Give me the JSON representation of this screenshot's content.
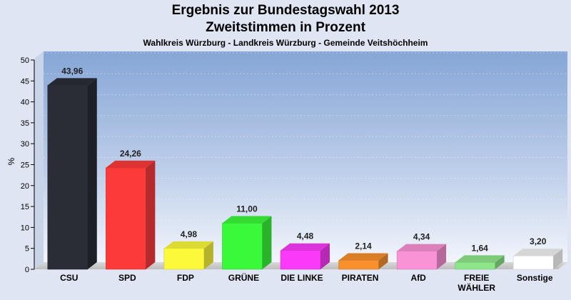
{
  "title": "Ergebnis zur Bundestagswahl 2013",
  "title2": "Zweitstimmen in Prozent",
  "subtitle": "Wahlkreis Würzburg - Landkreis Würzburg - Gemeinde Veitshöchheim",
  "chart_data": {
    "type": "bar",
    "title": "Ergebnis zur Bundestagswahl 2013",
    "subtitle": "Zweitstimmen in Prozent",
    "ylabel": "%",
    "xlabel": "",
    "ylim": [
      0,
      50
    ],
    "yticks": [
      0,
      5,
      10,
      15,
      20,
      25,
      30,
      35,
      40,
      45,
      50
    ],
    "grid": true,
    "legend": "none",
    "categories": [
      [
        "CSU"
      ],
      [
        "SPD"
      ],
      [
        "FDP"
      ],
      [
        "GRÜNE"
      ],
      [
        "DIE LINKE"
      ],
      [
        "PIRATEN"
      ],
      [
        "AfD"
      ],
      [
        "FREIE",
        "WÄHLER"
      ],
      [
        "Sonstige"
      ]
    ],
    "values": [
      43.96,
      24.26,
      4.98,
      11.0,
      4.48,
      2.14,
      4.34,
      1.64,
      3.2
    ],
    "value_labels": [
      "43,96",
      "24,26",
      "4,98",
      "11,00",
      "4,48",
      "2,14",
      "4,34",
      "1,64",
      "3,20"
    ],
    "colors": [
      "#2a2d36",
      "#fc3a3a",
      "#fbf93a",
      "#3af93a",
      "#fa3af8",
      "#f8902e",
      "#fa92d6",
      "#8ee68a",
      "#ffffff"
    ]
  }
}
